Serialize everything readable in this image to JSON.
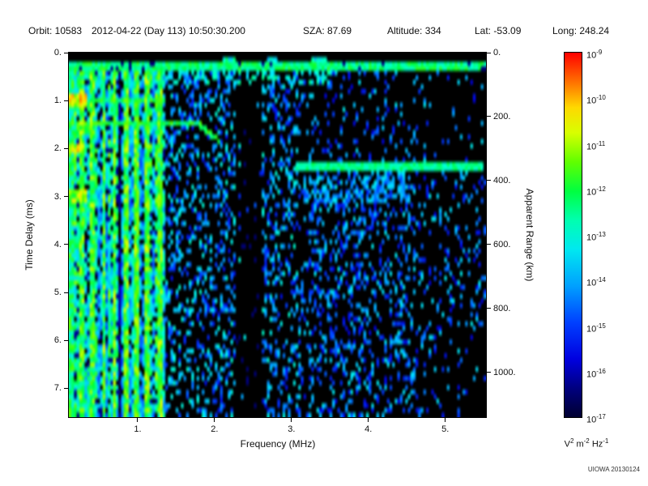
{
  "header": {
    "items": [
      "Orbit: 10583",
      "2012-04-22 (Day 113) 10:50:30.200",
      "SZA: 87.69",
      "Altitude: 334",
      "Lat: -53.09",
      "Long: 248.24"
    ]
  },
  "footer": {
    "credit": "UIOWA 20130124"
  },
  "chart_data": {
    "type": "heatmap",
    "title": "",
    "xlabel": "Frequency (MHz)",
    "ylabel_left": "Time Delay (ms)",
    "ylabel_right": "Apparent Range (km)",
    "x_range": [
      0.105,
      5.53
    ],
    "y_range": [
      0,
      7.6
    ],
    "x_ticks": [
      1,
      2,
      3,
      4,
      5
    ],
    "x_tick_labels": [
      "1.",
      "2.",
      "3.",
      "4.",
      "5."
    ],
    "y_ticks": [
      0,
      1,
      2,
      3,
      4,
      5,
      6,
      7
    ],
    "y_tick_labels": [
      "0.",
      "1.",
      "2.",
      "3.",
      "4.",
      "5.",
      "6.",
      "7."
    ],
    "y2_ticks_km": [
      0,
      200,
      400,
      600,
      800,
      1000
    ],
    "y2_tick_labels": [
      "0.",
      "200.",
      "400.",
      "600.",
      "800.",
      "1000."
    ],
    "km_per_ms": 150,
    "grid": false,
    "background": "#000000",
    "colorbar": {
      "base": "10",
      "exponents": [
        "-9",
        "-10",
        "-11",
        "-12",
        "-13",
        "-14",
        "-15",
        "-16",
        "-17"
      ],
      "unit_parts": [
        [
          "V",
          "2"
        ],
        [
          "m",
          "-2"
        ],
        [
          "Hz",
          "-1"
        ]
      ]
    },
    "colormap": [
      {
        "t": 0.0,
        "c": "#000030"
      },
      {
        "t": 0.08,
        "c": "#000080"
      },
      {
        "t": 0.16,
        "c": "#0000e0"
      },
      {
        "t": 0.26,
        "c": "#0040ff"
      },
      {
        "t": 0.36,
        "c": "#00a0ff"
      },
      {
        "t": 0.46,
        "c": "#00e8f0"
      },
      {
        "t": 0.54,
        "c": "#00ffb0"
      },
      {
        "t": 0.62,
        "c": "#00ff40"
      },
      {
        "t": 0.7,
        "c": "#60ff00"
      },
      {
        "t": 0.78,
        "c": "#d8ff00"
      },
      {
        "t": 0.85,
        "c": "#ffd800"
      },
      {
        "t": 0.92,
        "c": "#ff7000"
      },
      {
        "t": 1.0,
        "c": "#ff0000"
      }
    ],
    "features": {
      "noise_seed": 1337,
      "cells": [
        160,
        80
      ],
      "left_band": {
        "f_max": 1.35,
        "base": 0.33,
        "var": 0.28,
        "gap_prob": 0.2,
        "harmonics": [
          0.28,
          0.42,
          0.56,
          0.7,
          0.84,
          0.98,
          1.12,
          1.3
        ],
        "harmonic_level": 0.52,
        "harmonic_var": 0.26
      },
      "surface_band": {
        "d0": 0.19,
        "d1": 0.42,
        "level": 0.5,
        "var": 0.16
      },
      "sub_band": {
        "d1": 0.7,
        "f_max": 3.6,
        "density": 0.3,
        "level": 0.42
      },
      "top_dashes": [
        {
          "f": 2.2,
          "w": 0.18,
          "level": 0.5
        },
        {
          "f": 2.75,
          "w": 0.12,
          "level": 0.45
        },
        {
          "f": 3.35,
          "w": 0.2,
          "level": 0.5
        }
      ],
      "h_streak": {
        "d": 1.0,
        "f0": 0.1,
        "f1": 1.35,
        "level": 0.52
      },
      "traces": [
        {
          "d": 1.5,
          "f0": 0.105,
          "f1": 2.06,
          "width": 0.06,
          "level": 0.55,
          "var": 0.15,
          "hook_f": 1.8,
          "hook_slope": 1.3
        },
        {
          "d": 2.38,
          "f0": 3.05,
          "f1": 5.5,
          "width": 0.055,
          "level": 0.5,
          "var": 0.12,
          "hook_f": 99,
          "hook_slope": 0
        }
      ],
      "plasma_blobs": [
        {
          "f": 0.18,
          "d": 1.02,
          "w": 0.16,
          "h": 0.13,
          "level": 0.8
        },
        {
          "f": 0.3,
          "d": 1.5,
          "w": 0.1,
          "h": 0.1,
          "level": 0.68
        },
        {
          "f": 0.18,
          "d": 2.0,
          "w": 0.14,
          "h": 0.12,
          "level": 0.78
        },
        {
          "f": 0.18,
          "d": 2.98,
          "w": 0.16,
          "h": 0.13,
          "level": 0.72
        },
        {
          "f": 0.16,
          "d": 4.0,
          "w": 0.12,
          "h": 0.11,
          "level": 0.58
        }
      ],
      "mid_speckle": {
        "f0": 1.35,
        "f1": 3.1,
        "density": 0.32,
        "level": 0.3
      },
      "dark_band": {
        "f0": 2.28,
        "f1": 2.62,
        "factor": 0.15
      },
      "right_speckle": {
        "density": 0.3,
        "level": 0.26,
        "fade_f": 4.6,
        "quiet_above_d": 2.25,
        "quiet_factor": 0.45
      },
      "diffuse_band": {
        "f0": 3.15,
        "f1": 4.55,
        "d0": 2.52,
        "d1": 3.1,
        "density": 0.5,
        "level": 0.36
      }
    }
  }
}
